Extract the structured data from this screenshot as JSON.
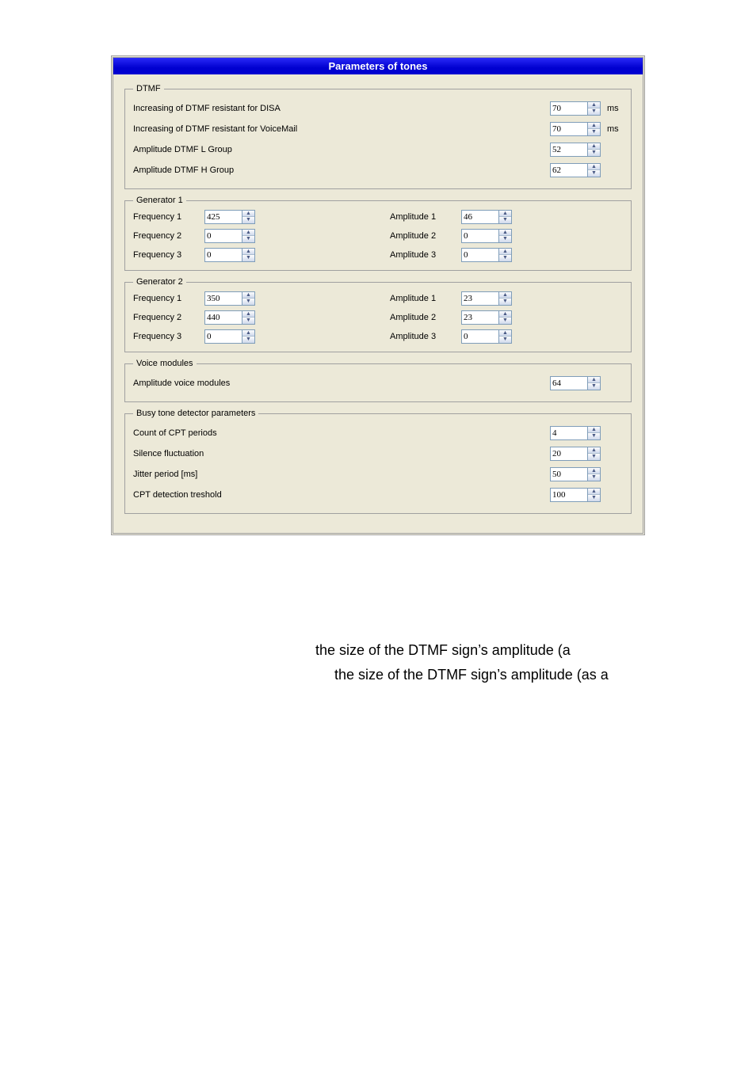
{
  "title_bar": "Parameters of tones",
  "dtmf": {
    "legend": "DTMF",
    "rows": [
      {
        "label": "Increasing of DTMF resistant for DISA",
        "value": "70",
        "unit": "ms"
      },
      {
        "label": "Increasing of DTMF resistant for VoiceMail",
        "value": "70",
        "unit": "ms"
      },
      {
        "label": "Amplitude DTMF L Group",
        "value": "52",
        "unit": ""
      },
      {
        "label": "Amplitude DTMF H Group",
        "value": "62",
        "unit": ""
      }
    ]
  },
  "gen1": {
    "legend": "Generator 1",
    "freq_labels": [
      "Frequency 1",
      "Frequency 2",
      "Frequency 3"
    ],
    "amp_labels": [
      "Amplitude 1",
      "Amplitude 2",
      "Amplitude 3"
    ],
    "freq": [
      "425",
      "0",
      "0"
    ],
    "amp": [
      "46",
      "0",
      "0"
    ]
  },
  "gen2": {
    "legend": "Generator 2",
    "freq_labels": [
      "Frequency 1",
      "Frequency 2",
      "Frequency 3"
    ],
    "amp_labels": [
      "Amplitude 1",
      "Amplitude 2",
      "Amplitude 3"
    ],
    "freq": [
      "350",
      "440",
      "0"
    ],
    "amp": [
      "23",
      "23",
      "0"
    ]
  },
  "voice": {
    "legend": "Voice modules",
    "label": "Amplitude voice modules",
    "value": "64"
  },
  "busy": {
    "legend": "Busy tone detector parameters",
    "rows": [
      {
        "label": "Count of CPT periods",
        "value": "4"
      },
      {
        "label": "Silence fluctuation",
        "value": "20"
      },
      {
        "label": "Jitter period [ms]",
        "value": "50"
      },
      {
        "label": "CPT detection treshold",
        "value": "100"
      }
    ]
  },
  "doc": {
    "line1": "the size of the DTMF sign’s amplitude (a",
    "line2": "the  size  of  the  DTMF  sign’s  amplitude  (as  a"
  }
}
